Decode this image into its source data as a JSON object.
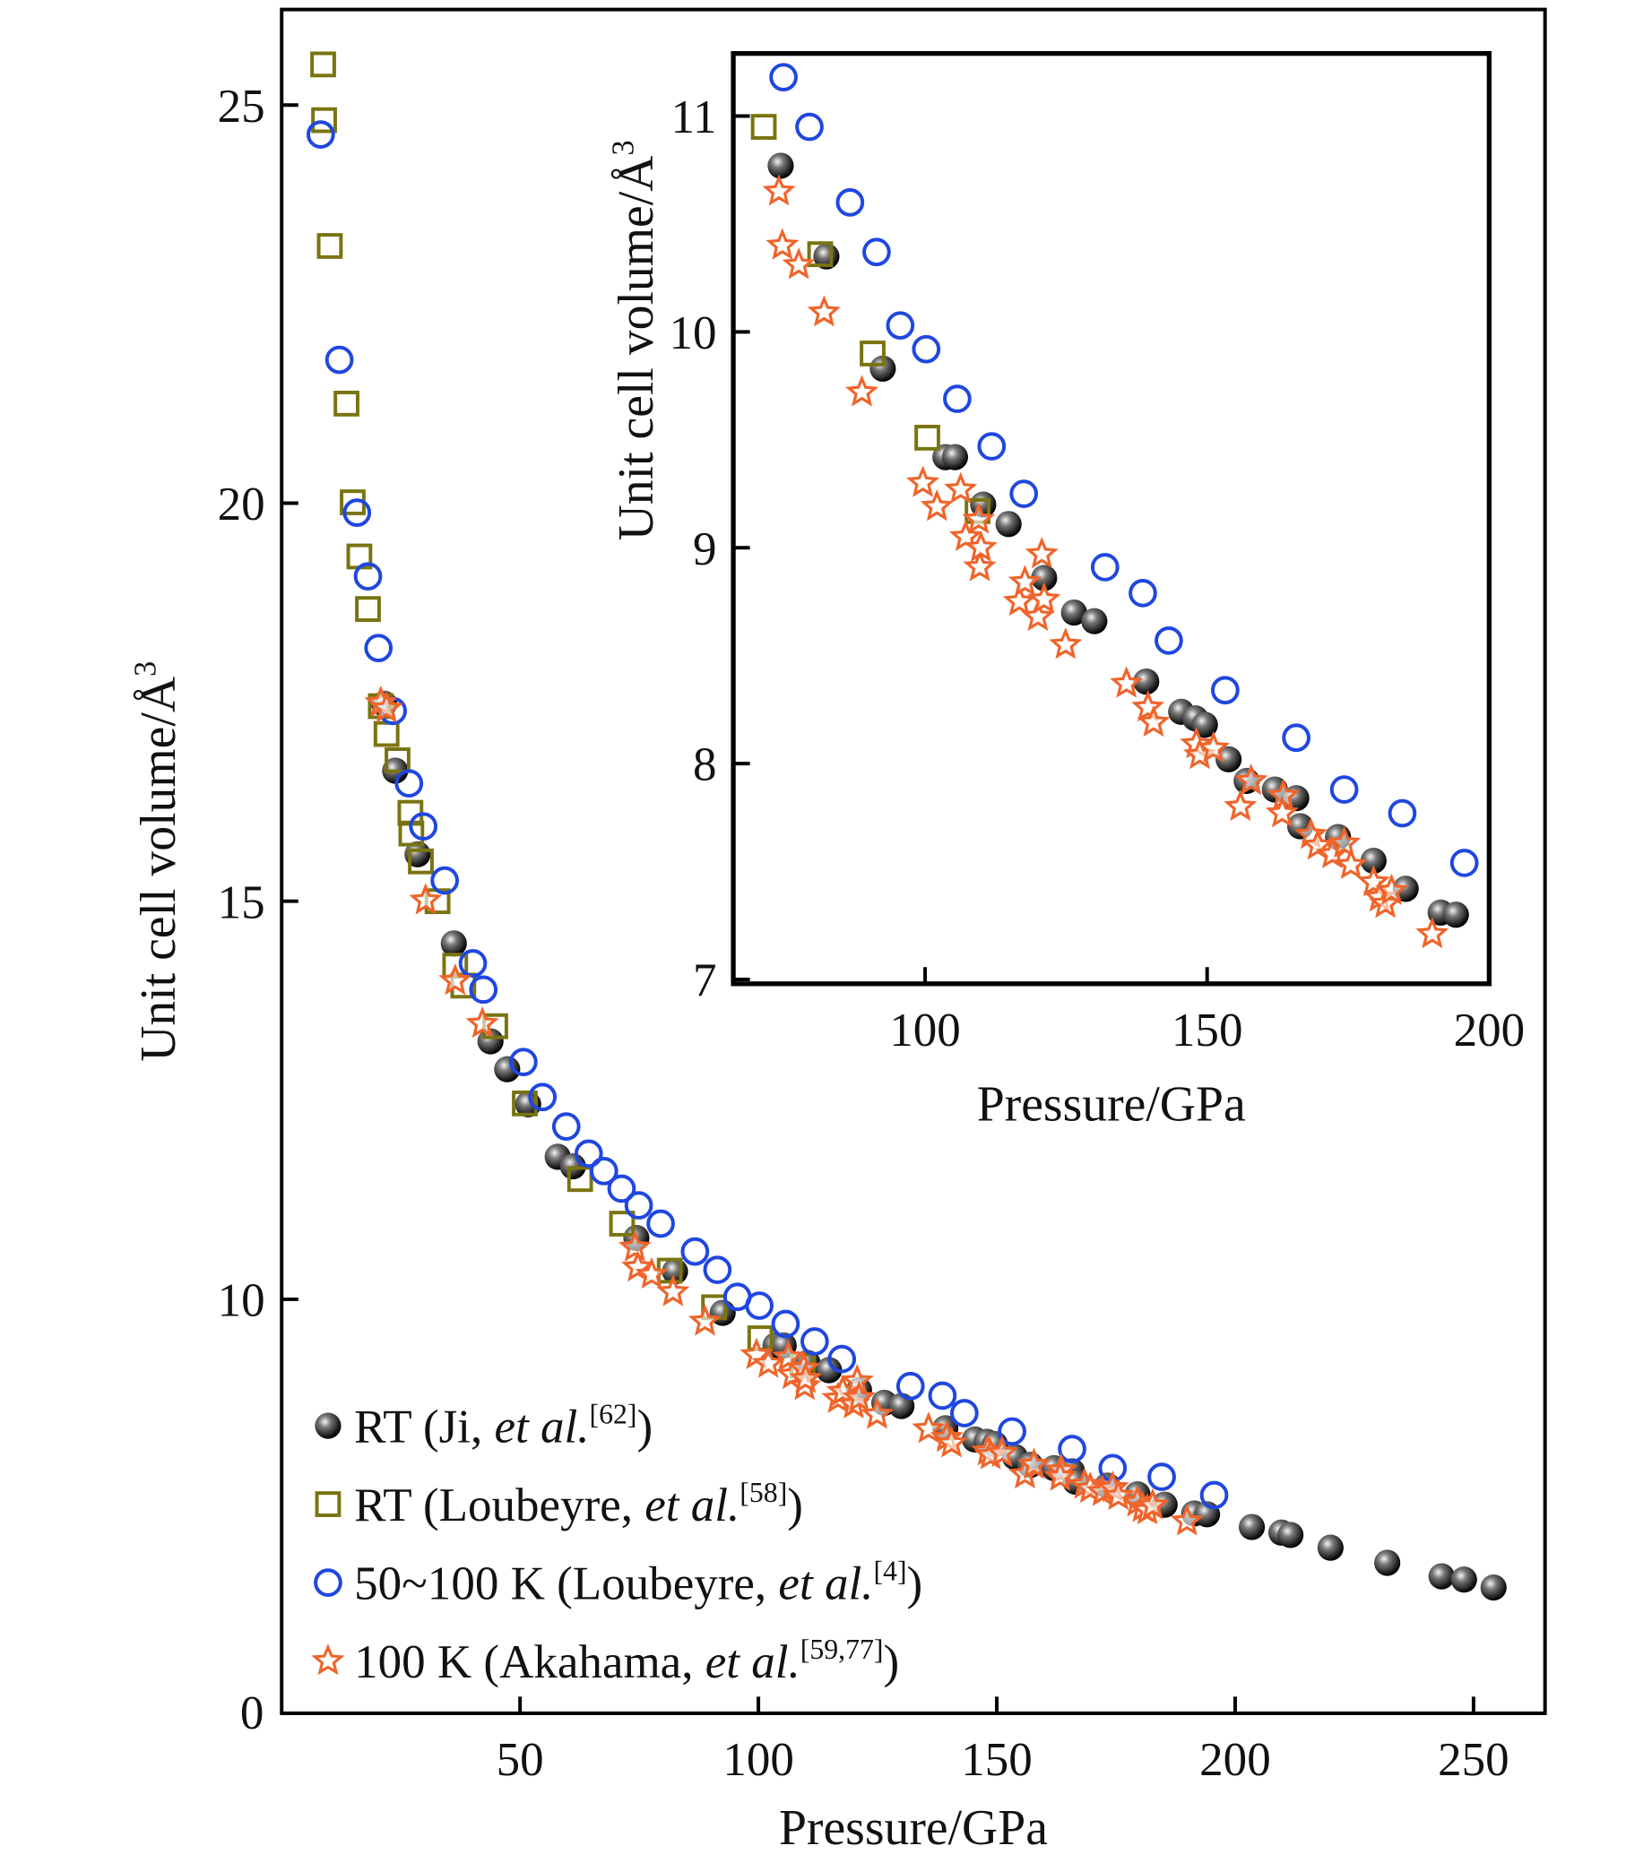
{
  "chart_data": [
    {
      "type": "scatter",
      "role": "main",
      "xlabel": "Pressure/GPa",
      "ylabel": "Unit cell volume/Å",
      "ylabel_sup": "3",
      "xlim": [
        0,
        265
      ],
      "ylim": [
        4.8,
        26.2
      ],
      "xticks": [
        50,
        100,
        150,
        200,
        250
      ],
      "yticks": [
        10,
        15,
        20,
        25
      ],
      "corner_label": "0",
      "grid": false,
      "legend_placement": "bottom-left",
      "legend": [
        {
          "prefix": "RT (Ji, ",
          "italic": "et al.",
          "sup": "[62]",
          "suffix": ")"
        },
        {
          "prefix": "RT (Loubeyre, ",
          "italic": "et al.",
          "sup": "[58]",
          "suffix": ")"
        },
        {
          "prefix": "50~100 K (Loubeyre, ",
          "italic": "et al.",
          "sup": "[4]",
          "suffix": ")"
        },
        {
          "prefix": "100 K (Akahama, ",
          "italic": "et al.",
          "sup": "[59,77]",
          "suffix": ")"
        }
      ],
      "series": [
        {
          "name": "RT (Ji, et al.[62])",
          "marker": "sphere",
          "color": "#111111",
          "points": [
            [
              21.5,
              17.48
            ],
            [
              23.8,
              16.64
            ],
            [
              28.5,
              15.59
            ],
            [
              36.1,
              14.47
            ],
            [
              43.8,
              13.24
            ],
            [
              47.3,
              12.89
            ],
            [
              51.7,
              12.45
            ],
            [
              57.9,
              11.79
            ],
            [
              61.1,
              11.67
            ],
            [
              74.4,
              10.77
            ],
            [
              82.5,
              10.35
            ],
            [
              92.5,
              9.83
            ],
            [
              103.6,
              9.42
            ],
            [
              105.3,
              9.42
            ],
            [
              110.3,
              9.2
            ],
            [
              114.8,
              9.11
            ],
            [
              121.1,
              8.86
            ],
            [
              126.4,
              8.7
            ],
            [
              130.0,
              8.66
            ],
            [
              139.2,
              8.38
            ],
            [
              145.4,
              8.24
            ],
            [
              147.9,
              8.21
            ],
            [
              149.6,
              8.18
            ],
            [
              153.8,
              8.02
            ],
            [
              157.0,
              7.92
            ],
            [
              162.0,
              7.88
            ],
            [
              165.8,
              7.84
            ],
            [
              166.5,
              7.71
            ],
            [
              173.2,
              7.66
            ],
            [
              179.5,
              7.55
            ],
            [
              185.2,
              7.42
            ],
            [
              191.4,
              7.31
            ],
            [
              194.1,
              7.3
            ],
            [
              203.5,
              7.14
            ],
            [
              209.7,
              7.07
            ],
            [
              211.6,
              7.04
            ],
            [
              220.0,
              6.88
            ],
            [
              231.9,
              6.69
            ],
            [
              243.3,
              6.52
            ],
            [
              248.0,
              6.48
            ],
            [
              254.2,
              6.38
            ]
          ]
        },
        {
          "name": "RT (Loubeyre, et al.[58])",
          "marker": "square",
          "color": "#7a7410",
          "points": [
            [
              8.7,
              25.51
            ],
            [
              8.9,
              24.81
            ],
            [
              10.1,
              23.23
            ],
            [
              13.6,
              21.25
            ],
            [
              14.9,
              20.01
            ],
            [
              16.3,
              19.33
            ],
            [
              18.1,
              18.67
            ],
            [
              20.8,
              17.45
            ],
            [
              22.0,
              17.1
            ],
            [
              24.3,
              16.77
            ],
            [
              27.0,
              16.11
            ],
            [
              27.2,
              15.85
            ],
            [
              29.2,
              15.5
            ],
            [
              32.7,
              15.0
            ],
            [
              36.4,
              14.19
            ],
            [
              38.1,
              13.94
            ],
            [
              44.8,
              13.43
            ],
            [
              51.0,
              12.46
            ],
            [
              62.6,
              11.51
            ],
            [
              71.4,
              10.95
            ],
            [
              81.4,
              10.36
            ],
            [
              90.7,
              9.9
            ],
            [
              100.4,
              9.51
            ],
            [
              109.3,
              9.17
            ]
          ]
        },
        {
          "name": "50~100 K (Loubeyre, et al.[4])",
          "marker": "circle",
          "color": "#1f47e0",
          "points": [
            [
              8.2,
              24.63
            ],
            [
              12.1,
              21.8
            ],
            [
              15.8,
              19.88
            ],
            [
              18.1,
              19.08
            ],
            [
              20.3,
              18.18
            ],
            [
              23.3,
              17.39
            ],
            [
              26.7,
              16.48
            ],
            [
              29.7,
              15.94
            ],
            [
              34.2,
              15.26
            ],
            [
              40.1,
              14.22
            ],
            [
              42.3,
              13.89
            ],
            [
              50.7,
              12.98
            ],
            [
              54.7,
              12.54
            ],
            [
              59.7,
              12.17
            ],
            [
              64.4,
              11.83
            ],
            [
              67.6,
              11.61
            ],
            [
              71.3,
              11.39
            ],
            [
              74.9,
              11.18
            ],
            [
              79.5,
              10.95
            ],
            [
              86.7,
              10.6
            ],
            [
              91.4,
              10.37
            ],
            [
              95.6,
              10.03
            ],
            [
              100.2,
              9.92
            ],
            [
              105.7,
              9.69
            ],
            [
              111.8,
              9.47
            ],
            [
              117.5,
              9.25
            ],
            [
              131.9,
              8.91
            ],
            [
              138.6,
              8.79
            ],
            [
              143.2,
              8.57
            ],
            [
              153.2,
              8.34
            ],
            [
              165.8,
              8.12
            ],
            [
              174.3,
              7.88
            ],
            [
              184.6,
              7.77
            ],
            [
              195.6,
              7.54
            ]
          ]
        },
        {
          "name": "100 K (Akahama, et al.[59,77])",
          "marker": "star",
          "color": "#f0642a",
          "points": [
            [
              20.8,
              17.49
            ],
            [
              22.0,
              17.42
            ],
            [
              30.2,
              15.01
            ],
            [
              36.4,
              14.0
            ],
            [
              42.1,
              13.46
            ],
            [
              74.1,
              10.65
            ],
            [
              74.7,
              10.4
            ],
            [
              77.6,
              10.31
            ],
            [
              82.1,
              10.09
            ],
            [
              88.8,
              9.72
            ],
            [
              99.6,
              9.3
            ],
            [
              102.1,
              9.19
            ],
            [
              106.3,
              9.27
            ],
            [
              107.2,
              9.05
            ],
            [
              109.5,
              9.13
            ],
            [
              109.7,
              8.91
            ],
            [
              109.9,
              9.0
            ],
            [
              116.7,
              8.75
            ],
            [
              117.7,
              8.84
            ],
            [
              120.7,
              8.97
            ],
            [
              120.0,
              8.68
            ],
            [
              121.1,
              8.76
            ],
            [
              124.9,
              8.55
            ],
            [
              135.7,
              8.37
            ],
            [
              139.5,
              8.26
            ],
            [
              140.5,
              8.19
            ],
            [
              148.1,
              8.09
            ],
            [
              148.7,
              8.04
            ],
            [
              151.1,
              8.07
            ],
            [
              155.9,
              7.8
            ],
            [
              157.8,
              7.92
            ],
            [
              163.5,
              7.85
            ],
            [
              163.3,
              7.77
            ],
            [
              168.4,
              7.67
            ],
            [
              169.6,
              7.62
            ],
            [
              172.2,
              7.58
            ],
            [
              174.3,
              7.63
            ],
            [
              175.5,
              7.53
            ],
            [
              179.5,
              7.45
            ],
            [
              180.6,
              7.38
            ],
            [
              181.6,
              7.35
            ],
            [
              182.7,
              7.41
            ],
            [
              189.9,
              7.21
            ]
          ]
        }
      ]
    },
    {
      "type": "scatter",
      "role": "inset",
      "xlabel": "Pressure/GPa",
      "ylabel": "Unit cell volume/Å",
      "ylabel_sup": "3",
      "xlim": [
        66,
        200
      ],
      "ylim": [
        6.98,
        11.29
      ],
      "xticks": [
        100,
        150,
        200
      ],
      "yticks": [
        7,
        8,
        9,
        10,
        11
      ],
      "grid": false,
      "note": "same series as main plot, restricted to 66–200 GPa"
    }
  ]
}
